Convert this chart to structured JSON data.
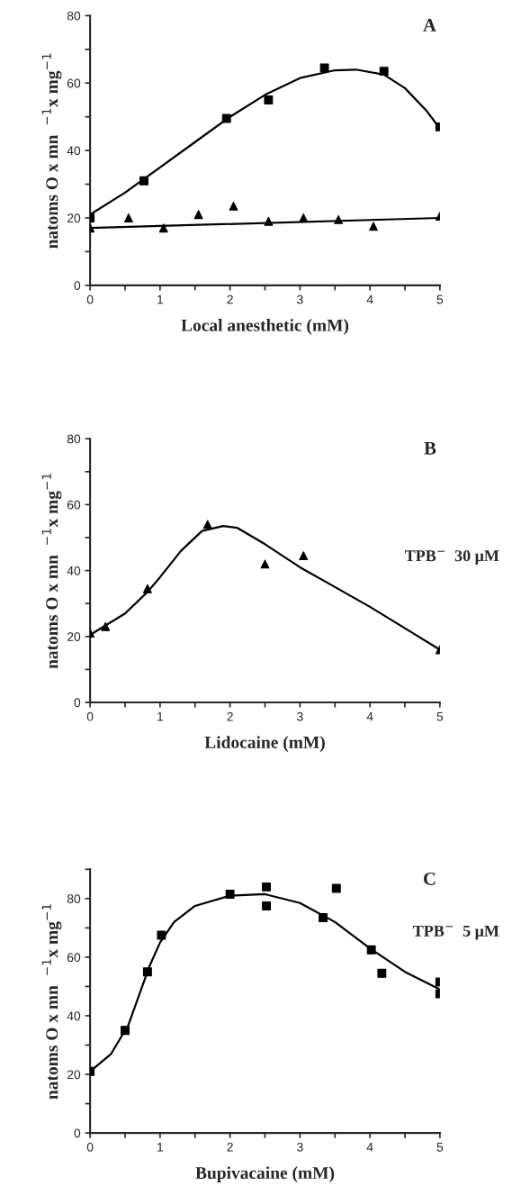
{
  "chart_data": [
    {
      "type": "scatter",
      "title": "A",
      "xlabel": "Local anesthetic (mM)",
      "ylabel": "natoms O x mn  $^{−1}$x mg$^{−1}$",
      "xlim": [
        0,
        5
      ],
      "xticks": [
        0,
        {
          "value": 0.5,
          "label": null
        },
        1,
        {
          "value": 1.5,
          "label": null
        },
        2,
        {
          "value": 2.5,
          "label": null
        },
        3,
        {
          "value": 3.5,
          "label": null
        },
        4,
        {
          "value": 4.5,
          "label": null
        },
        5
      ],
      "ylim": [
        0,
        80
      ],
      "yticks": [
        0,
        {
          "value": 10,
          "label": null
        },
        20,
        {
          "value": 30,
          "label": null
        },
        40,
        {
          "value": 50,
          "label": null
        },
        60,
        {
          "value": 70,
          "label": null
        },
        80
      ],
      "grid": false,
      "legend": false,
      "series": [
        {
          "marker": "square",
          "color": "#000000",
          "x": [
            0,
            0.77,
            1.95,
            2.55,
            3.35,
            4.2,
            5
          ],
          "values": [
            20,
            31,
            49.5,
            55,
            64.5,
            63.5,
            47
          ]
        },
        {
          "marker": "triangle",
          "color": "#000000",
          "x": [
            0,
            0.55,
            1.05,
            1.55,
            2.05,
            2.55,
            3.05,
            3.55,
            4.05,
            5
          ],
          "values": [
            17,
            20,
            17,
            21,
            23.5,
            19,
            20,
            19.5,
            17.5,
            20.5
          ]
        },
        {
          "type": "line",
          "color": "#000000",
          "x": [
            0,
            0.5,
            1,
            1.5,
            2,
            2.5,
            3,
            3.5,
            3.8,
            4.2,
            4.5,
            4.8,
            5
          ],
          "values": [
            21,
            27.5,
            35,
            42.5,
            50,
            56.5,
            61.5,
            63.8,
            64,
            62.5,
            58.5,
            52,
            46.5
          ]
        },
        {
          "type": "line",
          "color": "#000000",
          "x": [
            0,
            5
          ],
          "values": [
            17,
            20
          ]
        }
      ]
    },
    {
      "type": "scatter",
      "title": "B",
      "xlabel": "Lidocaine (mM)",
      "ylabel": "natoms O x mn  $^{−1}$x mg$^{−1}$",
      "annotations": [
        "TPB$^{−}$  30 μM"
      ],
      "xlim": [
        0,
        5
      ],
      "xticks": [
        0,
        {
          "value": 0.5,
          "label": null
        },
        1,
        {
          "value": 1.5,
          "label": null
        },
        2,
        {
          "value": 2.5,
          "label": null
        },
        3,
        {
          "value": 3.5,
          "label": null
        },
        4,
        {
          "value": 4.5,
          "label": null
        },
        5
      ],
      "ylim": [
        0,
        80
      ],
      "yticks": [
        0,
        {
          "value": 10,
          "label": null
        },
        20,
        {
          "value": 30,
          "label": null
        },
        40,
        {
          "value": 50,
          "label": null
        },
        60,
        {
          "value": 70,
          "label": null
        },
        80
      ],
      "grid": false,
      "legend": false,
      "series": [
        {
          "marker": "triangle",
          "color": "#000000",
          "x": [
            0,
            0.22,
            0.82,
            1.68,
            2.5,
            3.05,
            5
          ],
          "values": [
            21,
            23,
            34.5,
            54,
            42,
            44.5,
            16
          ]
        },
        {
          "type": "line",
          "color": "#000000",
          "x": [
            0,
            0.5,
            0.82,
            1,
            1.3,
            1.6,
            1.9,
            2.1,
            2.5,
            3,
            3.5,
            4,
            4.5,
            5
          ],
          "values": [
            20.5,
            27,
            33.5,
            38,
            46,
            52,
            53.5,
            53,
            48,
            41,
            35,
            29,
            22.5,
            16
          ]
        }
      ]
    },
    {
      "type": "scatter",
      "title": "C",
      "xlabel": "Bupivacaine (mM)",
      "ylabel": "natoms O x mn  $^{−1}$x mg$^{−1}$",
      "annotations": [
        "TPB$^{−}$  5 μM"
      ],
      "xlim": [
        0,
        5
      ],
      "xticks": [
        0,
        {
          "value": 0.5,
          "label": null
        },
        1,
        {
          "value": 1.5,
          "label": null
        },
        2,
        {
          "value": 2.5,
          "label": null
        },
        3,
        {
          "value": 3.5,
          "label": null
        },
        4,
        {
          "value": 4.5,
          "label": null
        },
        5
      ],
      "ylim": [
        0,
        90
      ],
      "yticks": [
        0,
        {
          "value": 10,
          "label": null
        },
        20,
        {
          "value": 30,
          "label": null
        },
        40,
        {
          "value": 50,
          "label": null
        },
        60,
        {
          "value": 70,
          "label": null
        },
        80,
        {
          "value": 90,
          "label": null
        }
      ],
      "grid": false,
      "legend": false,
      "series": [
        {
          "marker": "square",
          "color": "#000000",
          "x": [
            0,
            0.5,
            0.82,
            1.02,
            2,
            2.52,
            2.52,
            3.33,
            3.52,
            4.02,
            4.17,
            5,
            5
          ],
          "values": [
            21,
            35,
            55,
            67.5,
            81.5,
            84,
            77.5,
            73.5,
            83.5,
            62.5,
            54.5,
            51.5,
            47.5
          ]
        },
        {
          "type": "line",
          "color": "#000000",
          "x": [
            0,
            0.3,
            0.55,
            0.7,
            0.85,
            1,
            1.2,
            1.5,
            2,
            2.5,
            3,
            3.5,
            4,
            4.5,
            5
          ],
          "values": [
            21,
            27,
            37,
            47,
            57,
            65,
            72,
            77.5,
            81,
            81.5,
            78.5,
            72,
            63,
            55,
            49
          ]
        }
      ]
    }
  ]
}
